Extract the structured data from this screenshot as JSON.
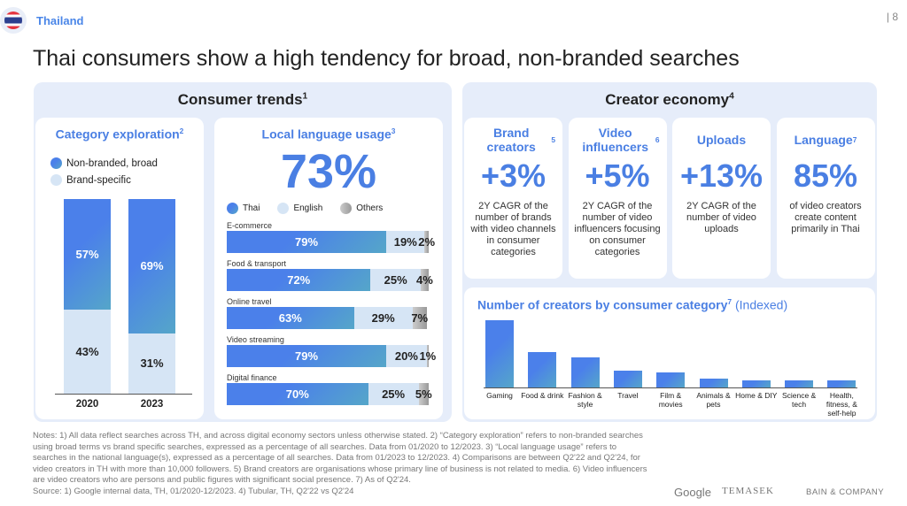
{
  "header": {
    "country": "Thailand",
    "page_number": "| 8",
    "title": "Thai consumers show a high tendency for broad, non-branded searches"
  },
  "consumer_trends": {
    "title": "Consumer trends",
    "sup": "1",
    "category_exploration": {
      "title": "Category exploration",
      "sup": "2",
      "legend": [
        "Non-branded, broad",
        "Brand-specific"
      ],
      "chart_data": {
        "type": "bar",
        "stacked": true,
        "categories": [
          "2020",
          "2023"
        ],
        "series": [
          {
            "name": "Non-branded, broad",
            "values": [
              57,
              69
            ]
          },
          {
            "name": "Brand-specific",
            "values": [
              43,
              31
            ]
          }
        ],
        "labels": [
          [
            "57%",
            "43%"
          ],
          [
            "69%",
            "31%"
          ]
        ]
      }
    },
    "local_language": {
      "title": "Local language usage",
      "sup": "3",
      "headline": "73%",
      "legend": [
        "Thai",
        "English",
        "Others"
      ],
      "chart_data": {
        "type": "bar",
        "orientation": "horizontal",
        "stacked": true,
        "categories": [
          "E-commerce",
          "Food & transport",
          "Online travel",
          "Video streaming",
          "Digital finance"
        ],
        "series": [
          {
            "name": "Thai",
            "values": [
              79,
              72,
              63,
              79,
              70
            ]
          },
          {
            "name": "English",
            "values": [
              19,
              25,
              29,
              20,
              25
            ]
          },
          {
            "name": "Others",
            "values": [
              2,
              4,
              7,
              1,
              5
            ]
          }
        ]
      }
    }
  },
  "creator_economy": {
    "title": "Creator economy",
    "sup": "4",
    "kpis": [
      {
        "title": "Brand creators",
        "sup": "5",
        "value": "+3%",
        "desc": "2Y CAGR of the number of brands with video channels in consumer categories"
      },
      {
        "title": "Video influencers",
        "sup": "6",
        "value": "+5%",
        "desc": "2Y CAGR of the number of video influencers focusing on consumer categories"
      },
      {
        "title": "Uploads",
        "sup": "",
        "value": "+13%",
        "desc": "2Y CAGR of the number of video uploads"
      },
      {
        "title": "Language",
        "sup": "7",
        "value": "85%",
        "desc": "of video creators create content primarily in Thai"
      }
    ],
    "creators_chart": {
      "title": "Number of creators by consumer category",
      "sup": "7",
      "subtitle": "(Indexed)",
      "chart_data": {
        "type": "bar",
        "categories": [
          "Gaming",
          "Food & drink",
          "Fashion & style",
          "Travel",
          "Film & movies",
          "Animals & pets",
          "Home & DIY",
          "Science & tech",
          "Health, fitness, & self-help"
        ],
        "values": [
          100,
          53,
          45,
          25,
          23,
          13,
          11,
          11,
          10
        ]
      }
    }
  },
  "notes": "Notes: 1) All data reflect searches across TH, and across digital economy sectors unless otherwise stated. 2) “Category exploration” refers to non-branded searches using broad terms vs brand specific searches, expressed as a percentage of all searches. Data from 01/2020 to 12/2023. 3) “Local language usage” refers to searches in the national language(s), expressed as a percentage of all searches. Data from 01/2023 to 12/2023. 4) Comparisons are between Q2'22 and Q2'24, for video creators in TH with more than 10,000 followers. 5) Brand creators are organisations whose primary line of business is not related to media. 6) Video influencers are video creators who are persons and public figures with significant social presence. 7) As of Q2'24.",
  "source": "Source: 1) Google internal data, TH, 01/2020-12/2023. 4) Tubular, TH, Q2'22 vs Q2'24",
  "logos": [
    "Google",
    "TEMASEK",
    "BAIN & COMPANY"
  ],
  "colors": {
    "accent": "#4a7fe3",
    "panel": "#e6edfa",
    "light": "#d6e5f5"
  }
}
